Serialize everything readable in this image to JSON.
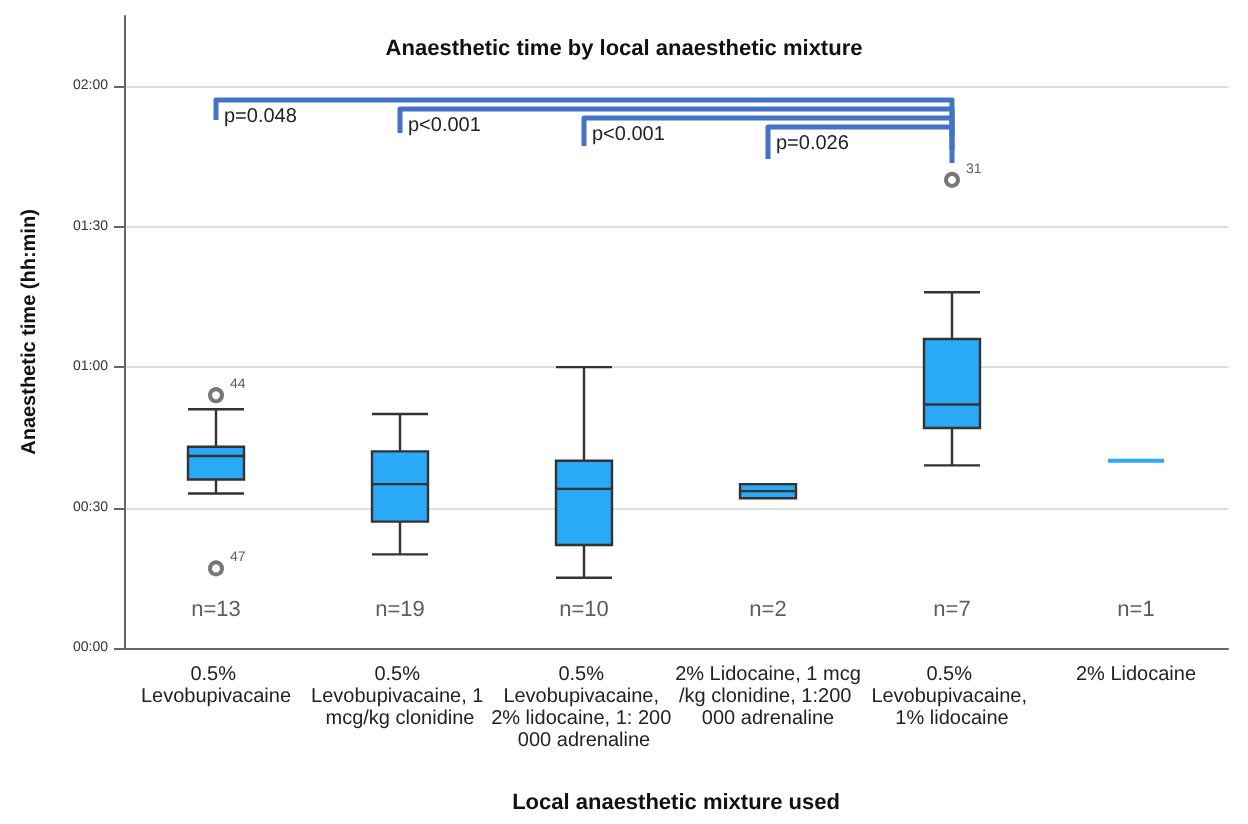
{
  "chart_data": {
    "type": "box",
    "title": "Anaesthetic time by local anaesthetic mixture",
    "xlabel": "Local anaesthetic mixture used",
    "ylabel": "Anaesthetic time (hh:min)",
    "categories": [
      "0.5% Levobupivacaine",
      "0.5% Levobupivacaine, 1 mcg/kg clonidine",
      "0.5% Levobupivacaine, 2% lidocaine, 1: 200 000 adrenaline",
      "2% Lidocaine, 1 mcg/kg clonidine, 1:200 000 adrenaline",
      "0.5% Levobupivacaine, 1% lidocaine",
      "2% Lidocaine"
    ],
    "color": "#2aa9f7",
    "boxes": [
      {
        "low": 33,
        "q1": 36,
        "median": 41,
        "q3": 43,
        "high": 51,
        "outliers": [
          54,
          17
        ]
      },
      {
        "low": 20,
        "q1": 27,
        "median": 35,
        "q3": 42,
        "high": 50
      },
      {
        "low": 15,
        "q1": 22,
        "median": 34,
        "q3": 40,
        "high": 60
      },
      {
        "low": 32,
        "q1": 32,
        "median": 33.5,
        "q3": 35,
        "high": 35
      },
      {
        "low": 39,
        "q1": 47,
        "median": 52,
        "q3": 66,
        "high": 76,
        "outliers": [
          100
        ]
      },
      {
        "low": 40,
        "q1": 40,
        "median": 40,
        "q3": 40,
        "high": 40
      }
    ],
    "ylim": [
      0,
      135
    ],
    "yticks": [
      {
        "value": 0,
        "label": "00:00"
      },
      {
        "value": 30,
        "label": "00:30"
      },
      {
        "value": 60,
        "label": "01:00"
      },
      {
        "value": 90,
        "label": "01:30"
      },
      {
        "value": 120,
        "label": "02:00"
      }
    ],
    "grid": "y",
    "annotations": [
      "44",
      "47",
      "31",
      "n=13",
      "n=19",
      "n=10",
      "n=2",
      "n=7",
      "n=1",
      "p=0.048",
      "p<0.001",
      "p<0.001",
      "p=0.026"
    ]
  }
}
